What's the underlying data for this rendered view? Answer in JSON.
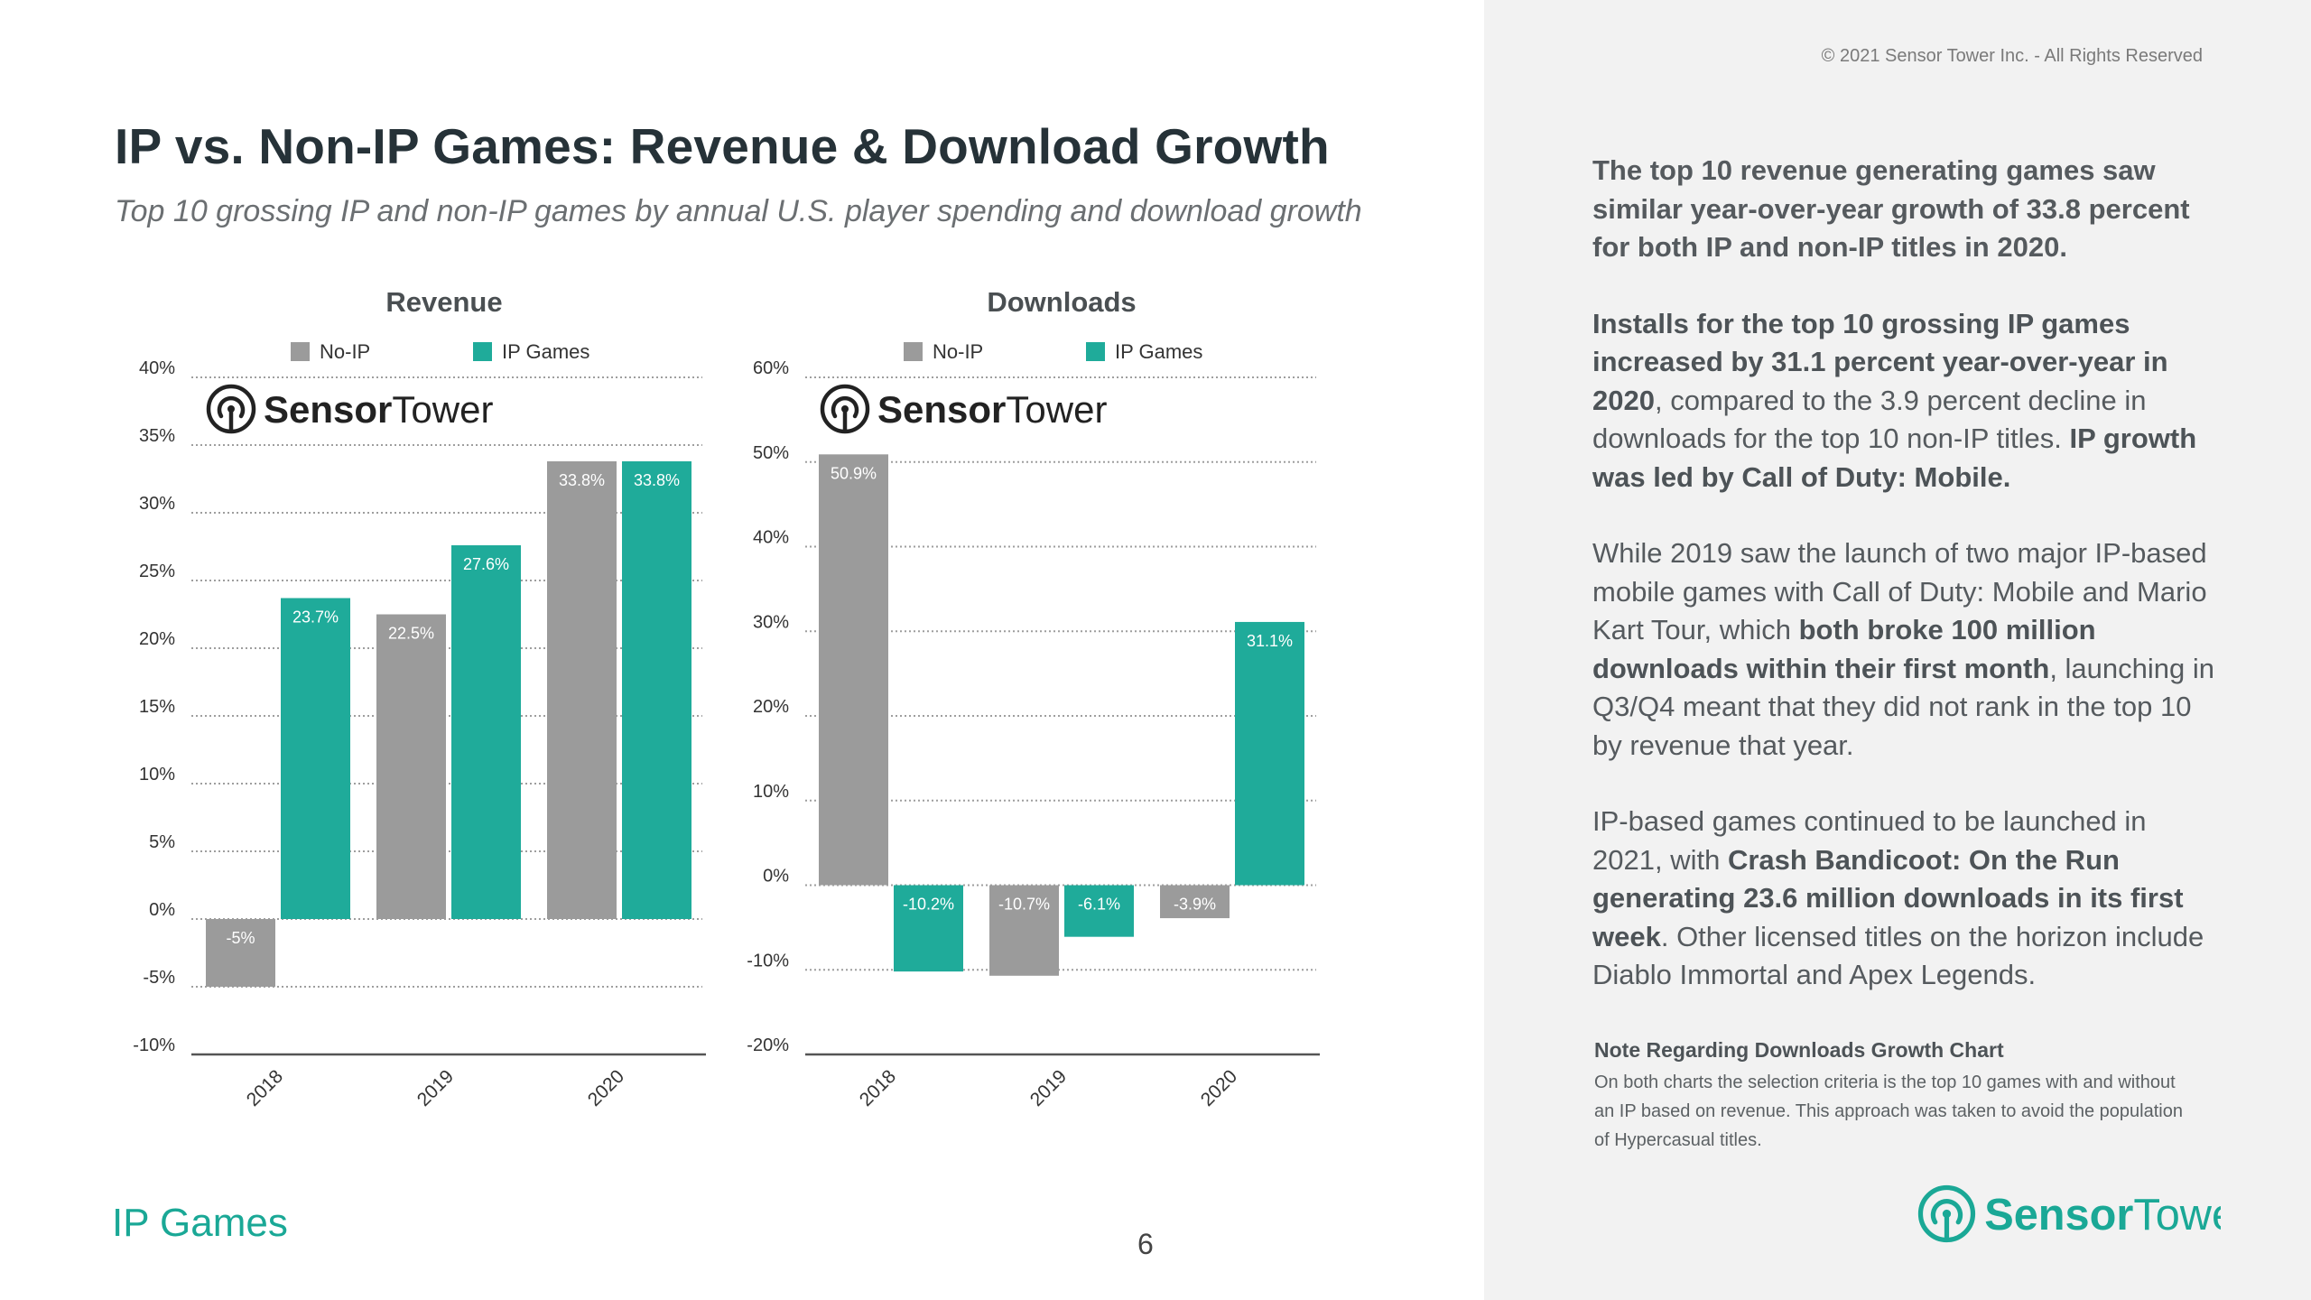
{
  "copyright": "© 2021 Sensor Tower Inc. - All Rights Reserved",
  "title": "IP vs. Non-IP Games: Revenue & Download Growth",
  "subtitle": "Top 10 grossing IP and non-IP games by annual U.S. player spending and download growth",
  "footer_section": "IP Games",
  "page_number": "6",
  "logo": {
    "text_bold": "Sensor",
    "text_regular": "Tower"
  },
  "colors": {
    "no_ip": "#9b9b9b",
    "ip": "#1fab9a",
    "accent": "#1aa896",
    "grid": "#9e9e9e"
  },
  "chart_data": [
    {
      "type": "bar",
      "title": "Revenue",
      "categories": [
        "2018",
        "2019",
        "2020"
      ],
      "series": [
        {
          "name": "No-IP",
          "values": [
            -5,
            22.5,
            33.8
          ],
          "labels": [
            "-5%",
            "22.5%",
            "33.8%"
          ]
        },
        {
          "name": "IP Games",
          "values": [
            23.7,
            27.6,
            33.8
          ],
          "labels": [
            "23.7%",
            "27.6%",
            "33.8%"
          ]
        }
      ],
      "ylim": [
        -10,
        40
      ],
      "yticks": [
        40,
        35,
        30,
        25,
        20,
        15,
        10,
        5,
        0,
        -5,
        -10
      ],
      "ytick_labels": [
        "40%",
        "35%",
        "30%",
        "25%",
        "20%",
        "15%",
        "10%",
        "5%",
        "0%",
        "-5%",
        "-10%"
      ],
      "legend": "top"
    },
    {
      "type": "bar",
      "title": "Downloads",
      "categories": [
        "2018",
        "2019",
        "2020"
      ],
      "series": [
        {
          "name": "No-IP",
          "values": [
            50.9,
            -10.7,
            -3.9
          ],
          "labels": [
            "50.9%",
            "-10.7%",
            "-3.9%"
          ]
        },
        {
          "name": "IP Games",
          "values": [
            -10.2,
            -6.1,
            31.1
          ],
          "labels": [
            "-10.2%",
            "-6.1%",
            "31.1%"
          ]
        }
      ],
      "ylim": [
        -20,
        60
      ],
      "yticks": [
        60,
        50,
        40,
        30,
        20,
        10,
        0,
        -10,
        -20
      ],
      "ytick_labels": [
        "60%",
        "50%",
        "40%",
        "30%",
        "20%",
        "10%",
        "0%",
        "-10%",
        "-20%"
      ],
      "legend": "top"
    }
  ],
  "insights": {
    "p1": "The top 10 revenue generating games saw similar year-over-year growth of 33.8 percent for both IP and non-IP titles in 2020.",
    "p2_bold": "Installs for the top 10 grossing IP games increased by 31.1 percent year-over-year in 2020",
    "p2_regular": ", compared to the 3.9 percent decline in downloads for the top 10 non-IP titles. ",
    "p2_bold2": "IP growth was led by Call of Duty: Mobile.",
    "p3_a": "While 2019 saw the launch of two major IP-based mobile games with Call of Duty: Mobile and Mario Kart Tour, which ",
    "p3_bold": "both broke 100 million downloads within their first month",
    "p3_b": ", launching in Q3/Q4 meant that they did not rank in the top 10 by revenue that year.",
    "p4_a": "IP-based games continued to be launched in 2021, with ",
    "p4_bold": "Crash Bandicoot: On the Run generating 23.6 million downloads in its first week",
    "p4_b": ". Other licensed titles on the horizon include Diablo Immortal and Apex Legends."
  },
  "note": {
    "title": "Note Regarding Downloads Growth Chart",
    "body": "On both charts the selection criteria is the top 10 games with and without an IP based on revenue. This approach was taken to avoid the population of Hypercasual titles."
  }
}
